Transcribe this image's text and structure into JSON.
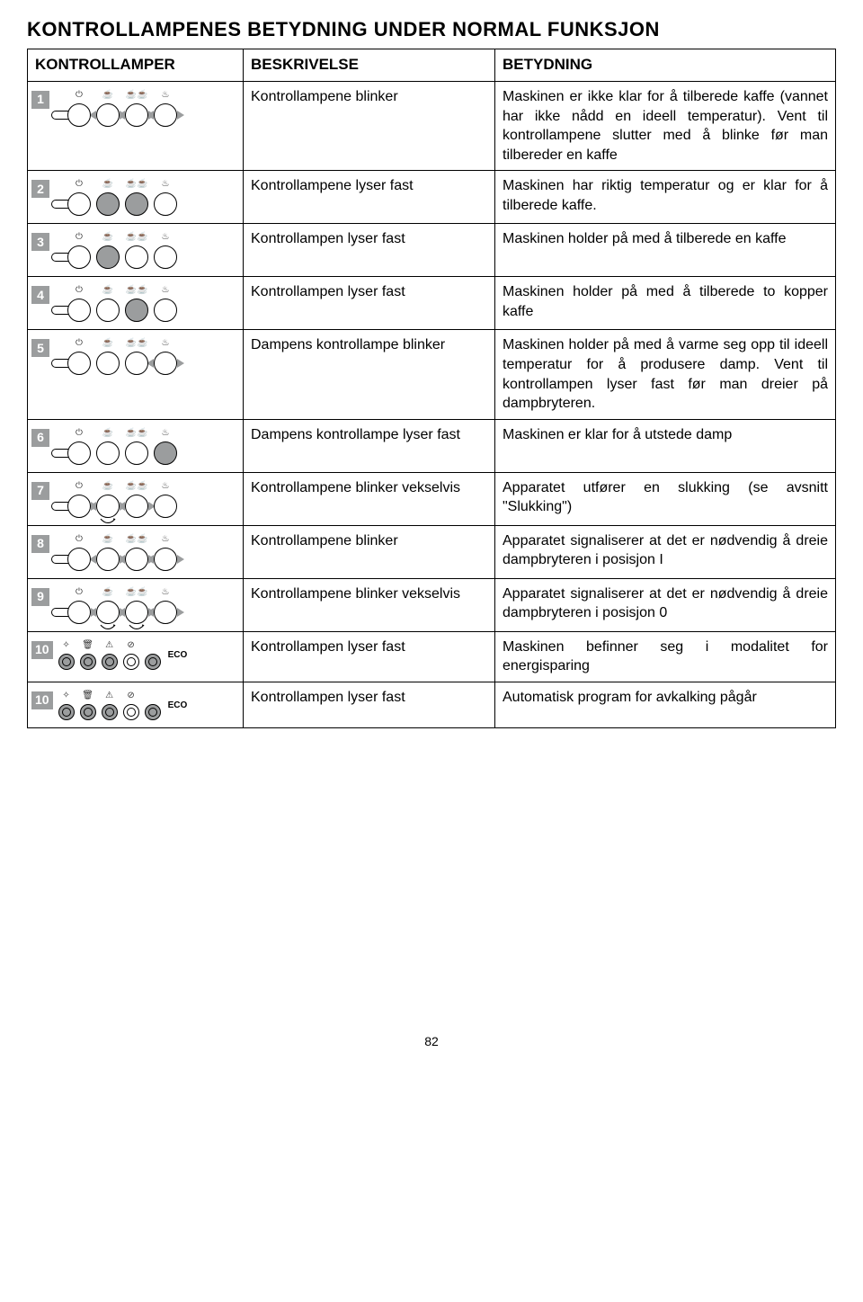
{
  "title": "KONTROLLAMPENES BETYDNING UNDER NORMAL FUNKSJON",
  "headers": {
    "col1": "KONTROLLAMPER",
    "col2": "BESKRIVELSE",
    "col3": "BETYDNING"
  },
  "page_number": "82",
  "rows": [
    {
      "num": "1",
      "lamp_type": "panel",
      "lamps": [
        {
          "state": "off",
          "blink": false,
          "handle": true,
          "label": "⏻"
        },
        {
          "state": "off",
          "blink": true,
          "label": "☕"
        },
        {
          "state": "off",
          "blink": true,
          "label": "☕☕"
        },
        {
          "state": "off",
          "blink": true,
          "label": "♨"
        }
      ],
      "desc": "Kontrollampene blinker",
      "meaning": "Maskinen er ikke klar for å tilberede kaffe (vannet har ikke nådd en ideell temperatur). Vent til kontrollampene slutter med å blinke før man tilbereder en kaffe"
    },
    {
      "num": "2",
      "lamp_type": "panel",
      "lamps": [
        {
          "state": "off",
          "blink": false,
          "handle": true,
          "label": "⏻"
        },
        {
          "state": "on",
          "blink": false,
          "label": "☕"
        },
        {
          "state": "on",
          "blink": false,
          "label": "☕☕"
        },
        {
          "state": "off",
          "blink": false,
          "label": "♨"
        }
      ],
      "desc": "Kontrollampene lyser fast",
      "meaning": "Maskinen har riktig temperatur og er klar for å tilberede kaffe."
    },
    {
      "num": "3",
      "lamp_type": "panel",
      "lamps": [
        {
          "state": "off",
          "blink": false,
          "handle": true,
          "label": "⏻"
        },
        {
          "state": "on",
          "blink": false,
          "label": "☕"
        },
        {
          "state": "off",
          "blink": false,
          "label": "☕☕"
        },
        {
          "state": "off",
          "blink": false,
          "label": "♨"
        }
      ],
      "desc": "Kontrollampen lyser fast",
      "meaning": "Maskinen holder på med å tilberede en kaffe"
    },
    {
      "num": "4",
      "lamp_type": "panel",
      "lamps": [
        {
          "state": "off",
          "blink": false,
          "handle": true,
          "label": "⏻"
        },
        {
          "state": "off",
          "blink": false,
          "label": "☕"
        },
        {
          "state": "on",
          "blink": false,
          "label": "☕☕"
        },
        {
          "state": "off",
          "blink": false,
          "label": "♨"
        }
      ],
      "desc": "Kontrollampen lyser fast",
      "meaning": "Maskinen holder på med å tilberede to kopper kaffe"
    },
    {
      "num": "5",
      "lamp_type": "panel",
      "lamps": [
        {
          "state": "off",
          "blink": false,
          "handle": true,
          "label": "⏻"
        },
        {
          "state": "off",
          "blink": false,
          "label": "☕"
        },
        {
          "state": "off",
          "blink": false,
          "label": "☕☕"
        },
        {
          "state": "off",
          "blink": true,
          "label": "♨"
        }
      ],
      "desc": "Dampens kontrollampe blinker",
      "meaning": "Maskinen holder på med å varme seg opp til ideell temperatur for å produsere damp. Vent til kontrollampen lyser fast før man dreier på dampbryteren."
    },
    {
      "num": "6",
      "lamp_type": "panel",
      "lamps": [
        {
          "state": "off",
          "blink": false,
          "handle": true,
          "label": "⏻"
        },
        {
          "state": "off",
          "blink": false,
          "label": "☕"
        },
        {
          "state": "off",
          "blink": false,
          "label": "☕☕"
        },
        {
          "state": "on",
          "blink": false,
          "label": "♨"
        }
      ],
      "desc": "Dampens kontrollampe lyser fast",
      "meaning": "Maskinen er klar for å utstede damp"
    },
    {
      "num": "7",
      "lamp_type": "panel",
      "lamps": [
        {
          "state": "off",
          "blink": true,
          "handle": true,
          "label": "⏻"
        },
        {
          "state": "off",
          "blink": true,
          "rotate": true,
          "label": "☕"
        },
        {
          "state": "off",
          "blink": true,
          "label": "☕☕"
        },
        {
          "state": "off",
          "blink": false,
          "label": "♨"
        }
      ],
      "desc": "Kontrollampene blinker vekselvis",
      "meaning": "Apparatet utfører en slukking (se avsnitt \"Slukking\")"
    },
    {
      "num": "8",
      "lamp_type": "panel",
      "lamps": [
        {
          "state": "off",
          "blink": false,
          "handle": true,
          "label": "⏻"
        },
        {
          "state": "off",
          "blink": true,
          "label": "☕"
        },
        {
          "state": "off",
          "blink": true,
          "label": "☕☕"
        },
        {
          "state": "off",
          "blink": true,
          "label": "♨"
        }
      ],
      "desc": "Kontrollampene blinker",
      "meaning": "Apparatet signaliserer at det er nødvendig å dreie dampbryteren i posisjon I"
    },
    {
      "num": "9",
      "lamp_type": "panel",
      "lamps": [
        {
          "state": "off",
          "blink": true,
          "handle": true,
          "label": "⏻"
        },
        {
          "state": "off",
          "blink": true,
          "rotate": true,
          "label": "☕"
        },
        {
          "state": "off",
          "blink": true,
          "rotate": true,
          "label": "☕☕"
        },
        {
          "state": "off",
          "blink": true,
          "label": "♨"
        }
      ],
      "desc": "Kontrollampene blinker vekselvis",
      "meaning": "Apparatet signaliserer at det er nødvendig å dreie dampbryteren i posisjon 0"
    },
    {
      "num": "10",
      "lamp_type": "mini",
      "lamps": [
        {
          "state": "on",
          "label": "✧"
        },
        {
          "state": "on",
          "label": "🗑"
        },
        {
          "state": "on",
          "label": "⚠"
        },
        {
          "state": "off",
          "label": "⊘"
        },
        {
          "state": "on",
          "label": ""
        }
      ],
      "eco": "ECO",
      "sublabels": "",
      "desc": "Kontrollampen lyser fast",
      "meaning": "Maskinen befinner seg i modalitet for energisparing"
    },
    {
      "num": "10",
      "lamp_type": "mini",
      "lamps": [
        {
          "state": "on",
          "label": "✧"
        },
        {
          "state": "on",
          "label": "🗑"
        },
        {
          "state": "on",
          "label": "⚠"
        },
        {
          "state": "off",
          "label": "⊘"
        },
        {
          "state": "on",
          "label": ""
        }
      ],
      "eco": "ECO",
      "desc": "Kontrollampen lyser fast",
      "meaning": "Automatisk program for avkalking pågår"
    }
  ]
}
